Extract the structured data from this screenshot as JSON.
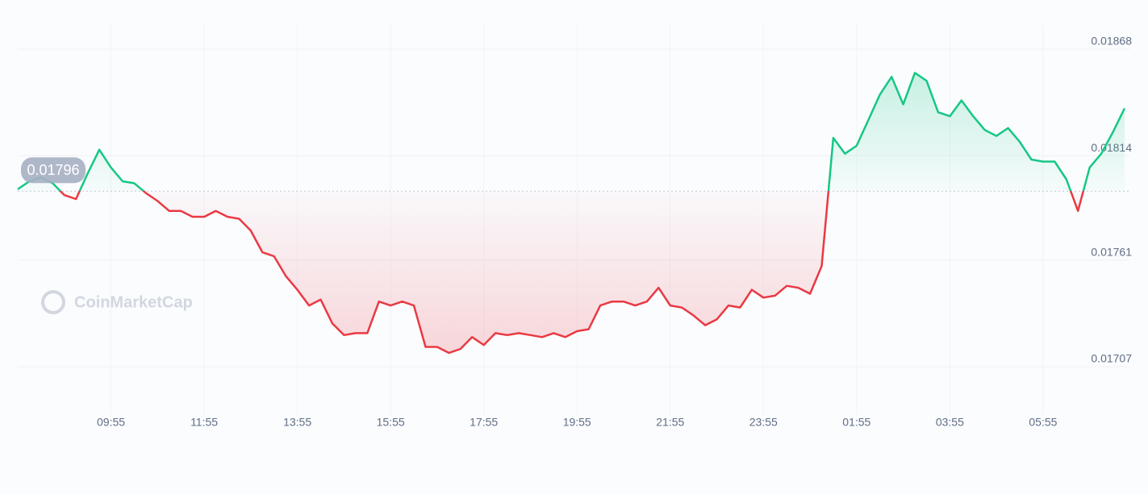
{
  "chart_data": {
    "type": "line",
    "watermark": "CoinMarketCap",
    "baseline": 0.01796,
    "up_color": "#16c784",
    "down_color": "#ea3943",
    "x": [
      "07:55",
      "08:10",
      "08:25",
      "08:40",
      "08:55",
      "09:10",
      "09:25",
      "09:40",
      "09:55",
      "10:10",
      "10:25",
      "10:40",
      "10:55",
      "11:10",
      "11:25",
      "11:40",
      "11:55",
      "12:10",
      "12:25",
      "12:40",
      "12:55",
      "13:10",
      "13:25",
      "13:40",
      "13:55",
      "14:10",
      "14:25",
      "14:40",
      "14:55",
      "15:10",
      "15:25",
      "15:40",
      "15:55",
      "16:10",
      "16:25",
      "16:40",
      "16:55",
      "17:10",
      "17:25",
      "17:40",
      "17:55",
      "18:10",
      "18:25",
      "18:40",
      "18:55",
      "19:10",
      "19:25",
      "19:40",
      "19:55",
      "20:10",
      "20:25",
      "20:40",
      "20:55",
      "21:10",
      "21:25",
      "21:40",
      "21:55",
      "22:10",
      "22:25",
      "22:40",
      "22:55",
      "23:10",
      "23:25",
      "23:40",
      "23:55",
      "00:10",
      "00:25",
      "00:40",
      "00:55",
      "01:10",
      "01:25",
      "01:40",
      "01:55",
      "02:10",
      "02:25",
      "02:40",
      "02:55",
      "03:10",
      "03:25",
      "03:40",
      "03:55",
      "04:10",
      "04:25",
      "04:40",
      "04:55",
      "05:10",
      "05:25",
      "05:40",
      "05:55",
      "06:10",
      "06:25",
      "06:40",
      "06:55",
      "07:10",
      "07:25",
      "07:40"
    ],
    "values": [
      0.01797,
      0.01801,
      0.01803,
      0.018,
      0.01794,
      0.01792,
      0.01805,
      0.01817,
      0.01808,
      0.01801,
      0.018,
      0.01795,
      0.01791,
      0.01786,
      0.01786,
      0.01783,
      0.01783,
      0.01786,
      0.01783,
      0.01782,
      0.01776,
      0.01765,
      0.01763,
      0.01753,
      0.01746,
      0.01738,
      0.01741,
      0.01729,
      0.01723,
      0.01724,
      0.01724,
      0.0174,
      0.01738,
      0.0174,
      0.01738,
      0.01717,
      0.01717,
      0.01714,
      0.01716,
      0.01722,
      0.01718,
      0.01724,
      0.01723,
      0.01724,
      0.01723,
      0.01722,
      0.01724,
      0.01722,
      0.01725,
      0.01726,
      0.01738,
      0.0174,
      0.0174,
      0.01738,
      0.0174,
      0.01747,
      0.01738,
      0.01737,
      0.01733,
      0.01728,
      0.01731,
      0.01738,
      0.01737,
      0.01746,
      0.01742,
      0.01743,
      0.01748,
      0.01747,
      0.01744,
      0.01758,
      0.01823,
      0.01815,
      0.01819,
      0.01832,
      0.01845,
      0.01854,
      0.0184,
      0.01856,
      0.01852,
      0.01836,
      0.01834,
      0.01842,
      0.01834,
      0.01827,
      0.01824,
      0.01828,
      0.01821,
      0.01812,
      0.01811,
      0.01811,
      0.01802,
      0.01786,
      0.01808,
      0.01815,
      0.01826,
      0.01838
    ],
    "ylim": [
      0.01707,
      0.01868
    ],
    "yticks": [
      0.01707,
      0.01761,
      0.01814,
      0.01868
    ],
    "xticks": [
      "09:55",
      "11:55",
      "13:55",
      "15:55",
      "17:55",
      "19:55",
      "21:55",
      "23:55",
      "01:55",
      "03:55",
      "05:55"
    ],
    "grid": true
  }
}
